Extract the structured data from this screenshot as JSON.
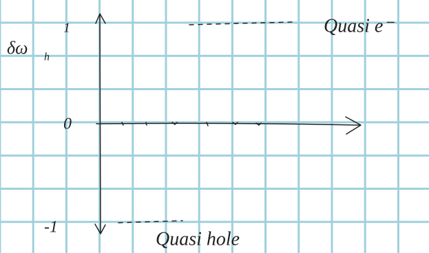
{
  "axis_labels": {
    "y": "δω",
    "y_sub": "h",
    "y_max": "1",
    "zero": "0",
    "y_min": "-1"
  },
  "annotations": {
    "top": "Quasi e⁻",
    "bottom": "Quasi hole"
  }
}
